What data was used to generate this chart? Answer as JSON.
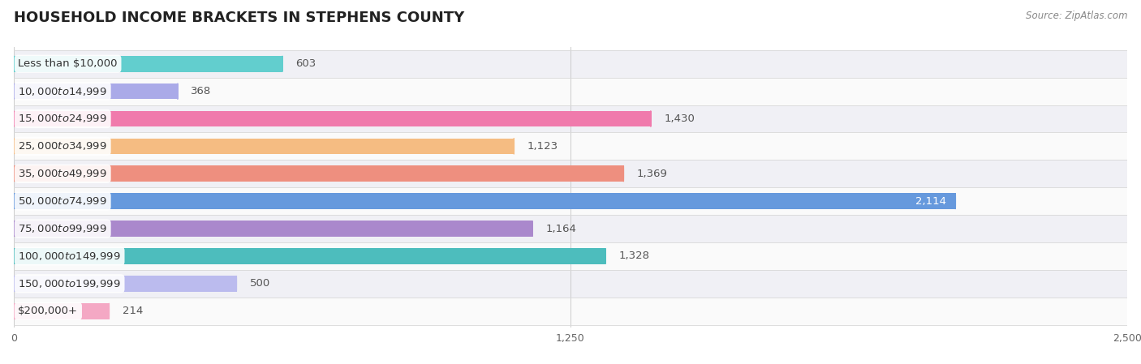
{
  "title": "Household Income Brackets in Stephens County",
  "title_display": "HOUSEHOLD INCOME BRACKETS IN STEPHENS COUNTY",
  "source": "Source: ZipAtlas.com",
  "categories": [
    "Less than $10,000",
    "$10,000 to $14,999",
    "$15,000 to $24,999",
    "$25,000 to $34,999",
    "$35,000 to $49,999",
    "$50,000 to $74,999",
    "$75,000 to $99,999",
    "$100,000 to $149,999",
    "$150,000 to $199,999",
    "$200,000+"
  ],
  "values": [
    603,
    368,
    1430,
    1123,
    1369,
    2114,
    1164,
    1328,
    500,
    214
  ],
  "colors": [
    "#62CECE",
    "#AAAAE8",
    "#F07AAC",
    "#F5BC82",
    "#EE8F7F",
    "#6699DD",
    "#AA88CC",
    "#4DBDBD",
    "#BBBBEE",
    "#F4A8C4"
  ],
  "xlim": [
    0,
    2500
  ],
  "xticks": [
    0,
    1250,
    2500
  ],
  "bar_height": 0.58,
  "row_bg_even": "#f0f0f5",
  "row_bg_odd": "#fafafa",
  "title_fontsize": 13,
  "label_fontsize": 9.5,
  "value_fontsize": 9.5,
  "source_fontsize": 8.5,
  "value_threshold": 2000
}
